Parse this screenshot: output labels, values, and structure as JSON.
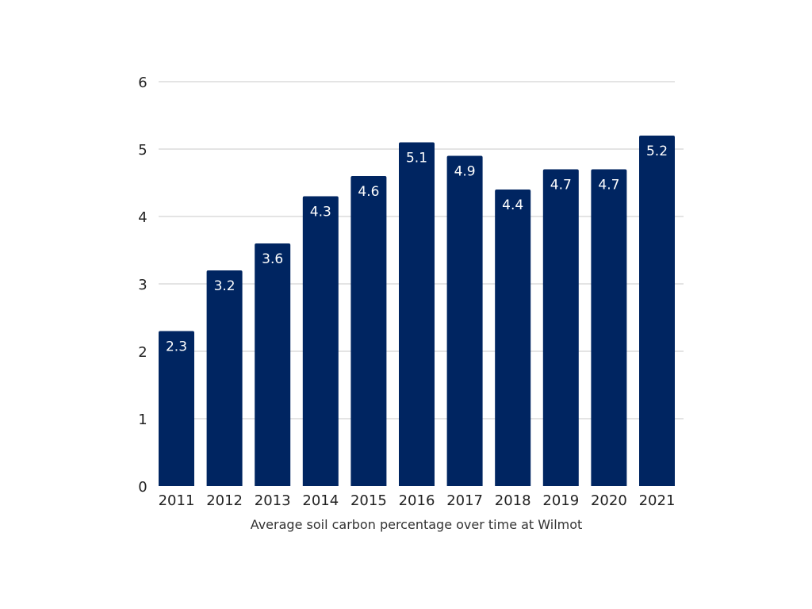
{
  "chart_data": {
    "type": "bar",
    "categories": [
      "2011",
      "2012",
      "2013",
      "2014",
      "2015",
      "2016",
      "2017",
      "2018",
      "2019",
      "2020",
      "2021"
    ],
    "values": [
      2.3,
      3.2,
      3.6,
      4.3,
      4.6,
      5.1,
      4.9,
      4.4,
      4.7,
      4.7,
      5.2
    ],
    "data_labels": [
      "2.3",
      "3.2",
      "3.6",
      "4.3",
      "4.6",
      "5.1",
      "4.9",
      "4.4",
      "4.7",
      "4.7",
      "5.2"
    ],
    "title": "",
    "xlabel": "Average soil carbon percentage over time at Wilmot",
    "ylabel": "",
    "ylim": [
      0,
      6
    ],
    "yticks": [
      "0",
      "1",
      "2",
      "3",
      "4",
      "5",
      "6"
    ],
    "grid": true,
    "legend": "none",
    "colors": {
      "bar": "#002561",
      "grid": "#c8c8c8",
      "label": "#ffffff"
    }
  }
}
